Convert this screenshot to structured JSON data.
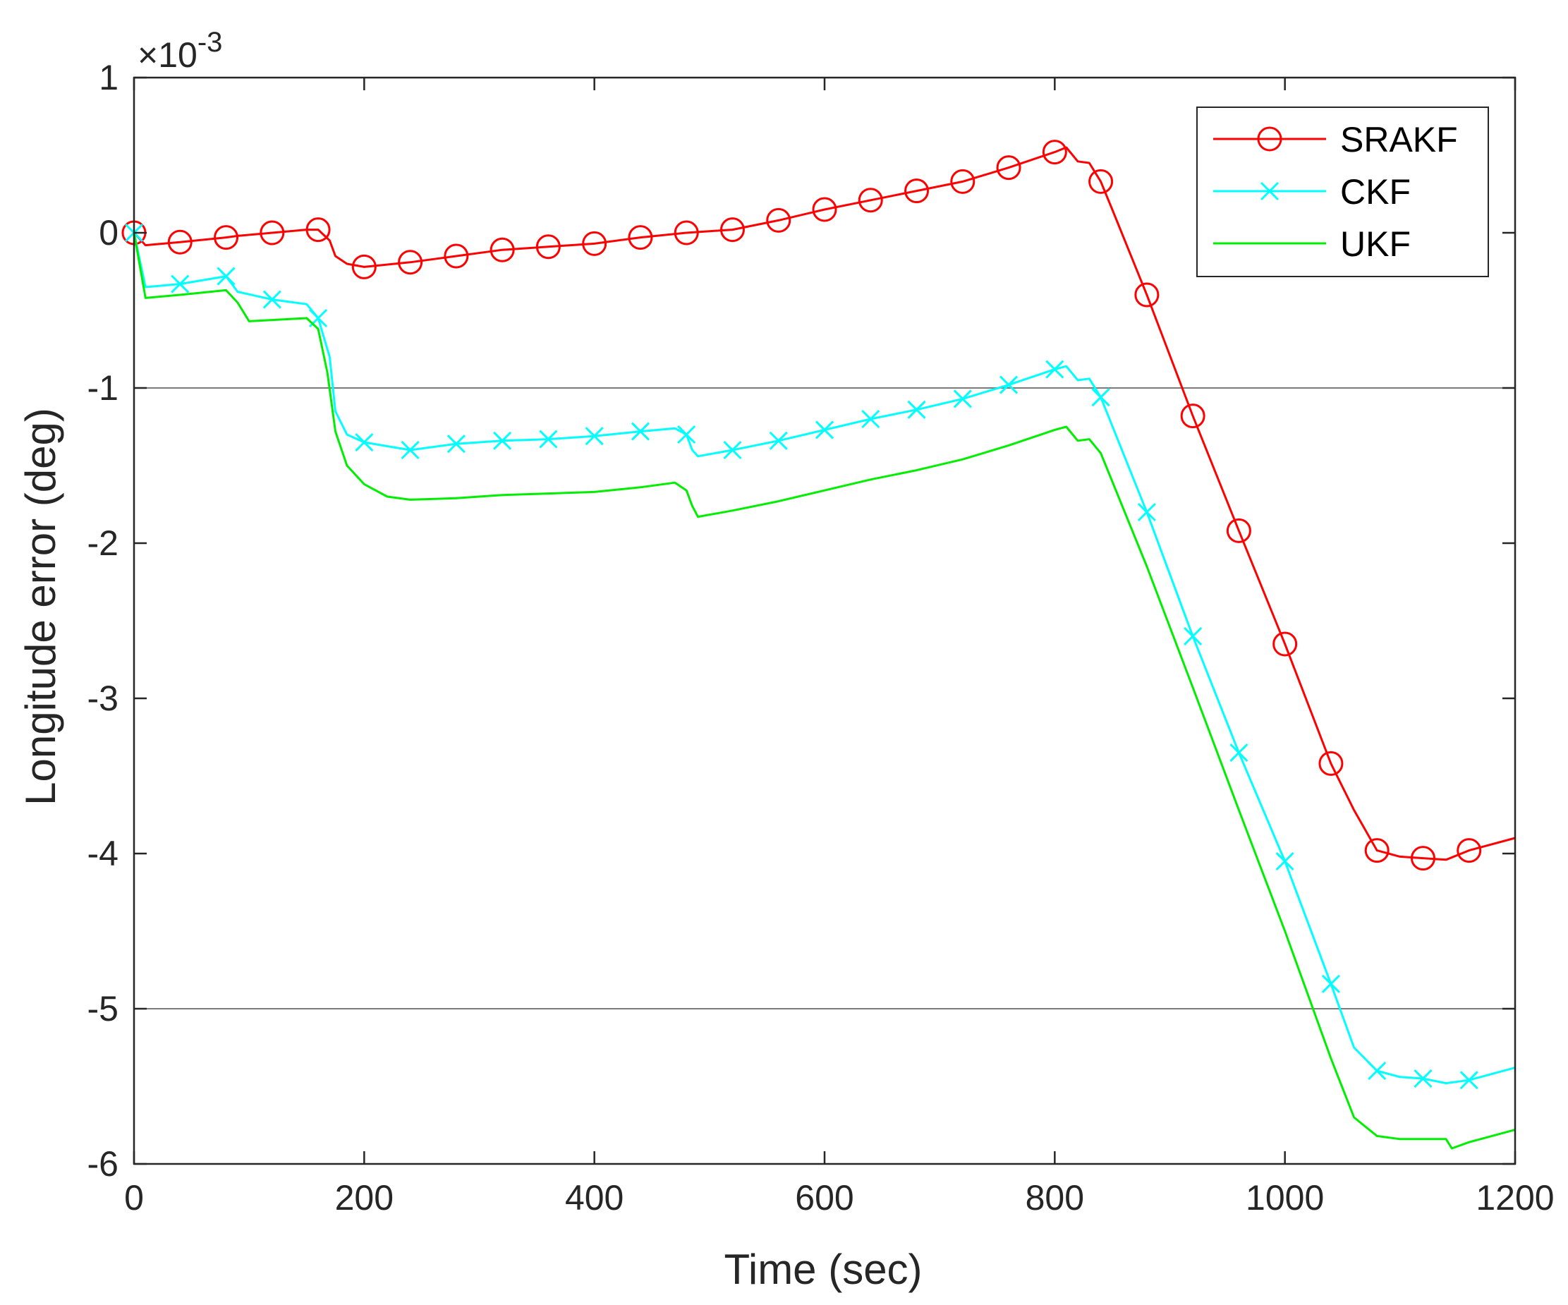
{
  "chart_data": {
    "type": "line",
    "xlabel": "Time (sec)",
    "ylabel": "Longitude error (deg)",
    "exponent_label": "×10",
    "exponent_power": "-3",
    "xlim": [
      0,
      1200
    ],
    "ylim": [
      -6,
      1
    ],
    "xticks": [
      0,
      200,
      400,
      600,
      800,
      1000,
      1200
    ],
    "xtick_labels": [
      "0",
      "200",
      "400",
      "600",
      "800",
      "1000",
      "1200"
    ],
    "yticks": [
      1,
      0,
      -1,
      -2,
      -3,
      -4,
      -5,
      -6
    ],
    "ytick_labels": [
      "1",
      "0",
      "-1",
      "-2",
      "-3",
      "-4",
      "-5",
      "-6"
    ],
    "gridlines_y": [
      -1,
      -5
    ],
    "legend_position": "top-right",
    "series": [
      {
        "name": "SRAKF",
        "color": "#ff0000",
        "marker": "circle",
        "x": [
          0,
          10,
          40,
          80,
          90,
          120,
          150,
          160,
          170,
          175,
          185,
          200,
          240,
          280,
          320,
          360,
          400,
          440,
          480,
          520,
          560,
          600,
          640,
          680,
          720,
          760,
          800,
          810,
          820,
          830,
          840,
          850,
          880,
          920,
          960,
          1000,
          1040,
          1060,
          1080,
          1100,
          1120,
          1140,
          1160,
          1200
        ],
        "y": [
          0,
          -0.08,
          -0.06,
          -0.03,
          -0.02,
          0.0,
          0.02,
          0.02,
          -0.05,
          -0.15,
          -0.2,
          -0.22,
          -0.19,
          -0.15,
          -0.11,
          -0.09,
          -0.07,
          -0.03,
          0.0,
          0.02,
          0.08,
          0.15,
          0.21,
          0.27,
          0.33,
          0.42,
          0.52,
          0.55,
          0.46,
          0.45,
          0.33,
          0.15,
          -0.4,
          -1.18,
          -1.92,
          -2.65,
          -3.42,
          -3.72,
          -3.98,
          -4.02,
          -4.03,
          -4.04,
          -3.98,
          -3.9
        ]
      },
      {
        "name": "CKF",
        "color": "#00ffff",
        "marker": "x",
        "x": [
          0,
          10,
          40,
          80,
          90,
          120,
          150,
          160,
          170,
          175,
          185,
          200,
          240,
          280,
          320,
          360,
          400,
          440,
          470,
          480,
          485,
          490,
          520,
          560,
          600,
          640,
          680,
          720,
          760,
          800,
          810,
          820,
          830,
          840,
          880,
          920,
          960,
          1000,
          1040,
          1060,
          1080,
          1100,
          1120,
          1140,
          1160,
          1200
        ],
        "y": [
          0,
          -0.35,
          -0.33,
          -0.28,
          -0.38,
          -0.43,
          -0.46,
          -0.55,
          -0.8,
          -1.15,
          -1.3,
          -1.35,
          -1.4,
          -1.36,
          -1.34,
          -1.33,
          -1.31,
          -1.28,
          -1.26,
          -1.3,
          -1.4,
          -1.44,
          -1.4,
          -1.34,
          -1.27,
          -1.2,
          -1.14,
          -1.07,
          -0.98,
          -0.88,
          -0.86,
          -0.95,
          -0.94,
          -1.06,
          -1.8,
          -2.6,
          -3.35,
          -4.05,
          -4.84,
          -5.25,
          -5.4,
          -5.44,
          -5.45,
          -5.48,
          -5.46,
          -5.38
        ]
      },
      {
        "name": "UKF",
        "color": "#00ee00",
        "marker": "none",
        "x": [
          0,
          10,
          40,
          80,
          90,
          100,
          150,
          160,
          168,
          175,
          185,
          200,
          220,
          240,
          280,
          320,
          360,
          400,
          440,
          470,
          480,
          485,
          490,
          520,
          560,
          600,
          640,
          680,
          720,
          760,
          800,
          810,
          820,
          830,
          840,
          880,
          920,
          960,
          1000,
          1040,
          1060,
          1080,
          1100,
          1120,
          1140,
          1145,
          1160,
          1200
        ],
        "y": [
          0,
          -0.42,
          -0.4,
          -0.37,
          -0.45,
          -0.57,
          -0.55,
          -0.62,
          -0.9,
          -1.28,
          -1.5,
          -1.62,
          -1.7,
          -1.72,
          -1.71,
          -1.69,
          -1.68,
          -1.67,
          -1.64,
          -1.61,
          -1.66,
          -1.76,
          -1.83,
          -1.79,
          -1.73,
          -1.66,
          -1.59,
          -1.53,
          -1.46,
          -1.37,
          -1.27,
          -1.25,
          -1.34,
          -1.33,
          -1.42,
          -2.15,
          -2.93,
          -3.72,
          -4.5,
          -5.32,
          -5.7,
          -5.82,
          -5.84,
          -5.84,
          -5.84,
          -5.9,
          -5.86,
          -5.78
        ]
      }
    ]
  }
}
